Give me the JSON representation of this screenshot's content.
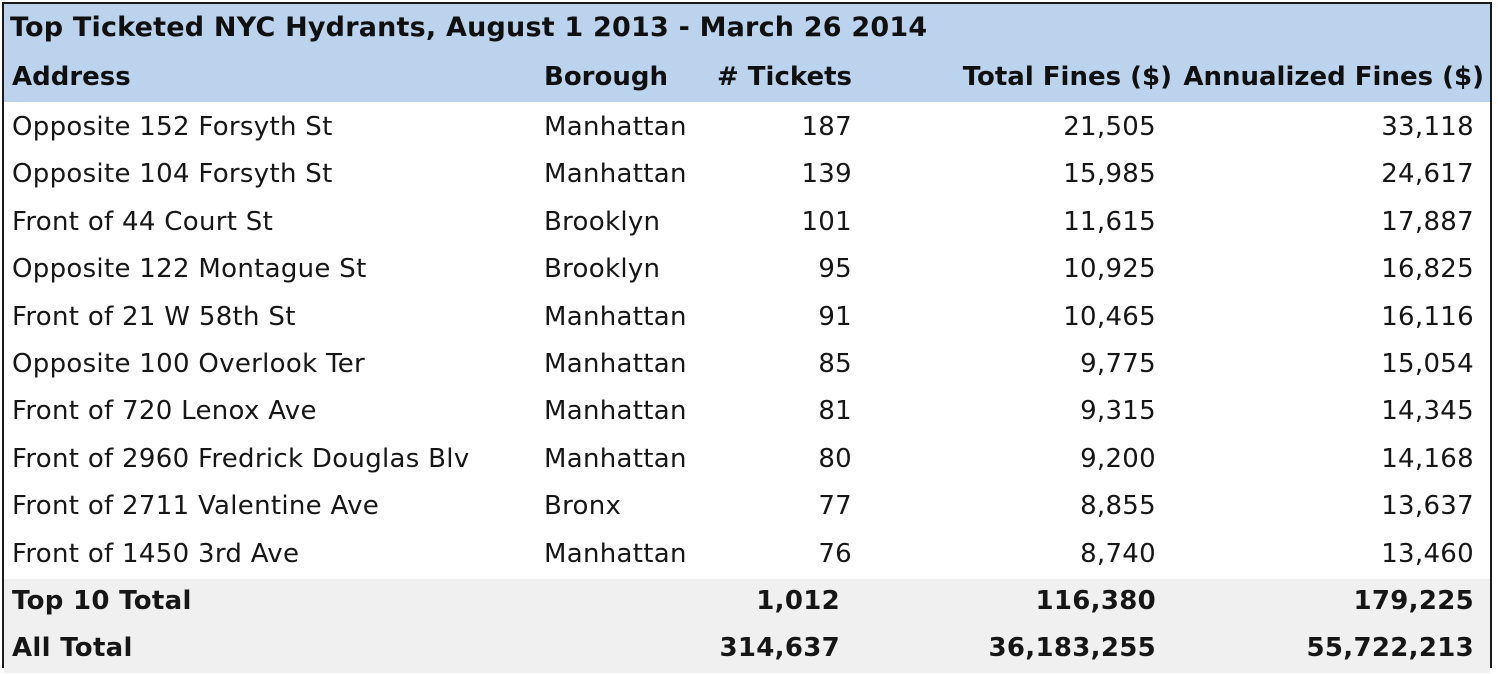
{
  "table": {
    "title": "Top Ticketed NYC Hydrants, August 1 2013 - March 26 2014",
    "headers": {
      "address": "Address",
      "borough": "Borough",
      "tickets": "# Tickets",
      "total_fines": "Total Fines ($)",
      "annualized_fines": "Annualized Fines ($)"
    },
    "rows": [
      {
        "address": "Opposite 152 Forsyth St",
        "borough": "Manhattan",
        "tickets": "187",
        "total_fines": "21,505",
        "annualized_fines": "33,118"
      },
      {
        "address": "Opposite 104 Forsyth St",
        "borough": "Manhattan",
        "tickets": "139",
        "total_fines": "15,985",
        "annualized_fines": "24,617"
      },
      {
        "address": "Front of 44 Court St",
        "borough": "Brooklyn",
        "tickets": "101",
        "total_fines": "11,615",
        "annualized_fines": "17,887"
      },
      {
        "address": "Opposite 122 Montague St",
        "borough": "Brooklyn",
        "tickets": "95",
        "total_fines": "10,925",
        "annualized_fines": "16,825"
      },
      {
        "address": "Front of 21 W 58th St",
        "borough": "Manhattan",
        "tickets": "91",
        "total_fines": "10,465",
        "annualized_fines": "16,116"
      },
      {
        "address": "Opposite 100 Overlook Ter",
        "borough": "Manhattan",
        "tickets": "85",
        "total_fines": "9,775",
        "annualized_fines": "15,054"
      },
      {
        "address": "Front of 720 Lenox Ave",
        "borough": "Manhattan",
        "tickets": "81",
        "total_fines": "9,315",
        "annualized_fines": "14,345"
      },
      {
        "address": "Front of 2960 Fredrick Douglas Blv",
        "borough": "Manhattan",
        "tickets": "80",
        "total_fines": "9,200",
        "annualized_fines": "14,168"
      },
      {
        "address": "Front of 2711 Valentine Ave",
        "borough": "Bronx",
        "tickets": "77",
        "total_fines": "8,855",
        "annualized_fines": "13,637"
      },
      {
        "address": "Front of 1450 3rd Ave",
        "borough": "Manhattan",
        "tickets": "76",
        "total_fines": "8,740",
        "annualized_fines": "13,460"
      }
    ],
    "totals": [
      {
        "label": "Top 10 Total",
        "tickets": "1,012",
        "total_fines": "116,380",
        "annualized_fines": "179,225"
      },
      {
        "label": "All Total",
        "tickets": "314,637",
        "total_fines": "36,183,255",
        "annualized_fines": "55,722,213"
      }
    ]
  },
  "colors": {
    "header_background": "#bcd3ed",
    "total_row_background": "#f0f0f0"
  },
  "chart_data": {
    "type": "table",
    "title": "Top Ticketed NYC Hydrants, August 1 2013 - March 26 2014",
    "columns": [
      "Address",
      "Borough",
      "# Tickets",
      "Total Fines ($)",
      "Annualized Fines ($)"
    ],
    "rows": [
      [
        "Opposite 152 Forsyth St",
        "Manhattan",
        187,
        21505,
        33118
      ],
      [
        "Opposite 104 Forsyth St",
        "Manhattan",
        139,
        15985,
        24617
      ],
      [
        "Front of 44 Court St",
        "Brooklyn",
        101,
        11615,
        17887
      ],
      [
        "Opposite 122 Montague St",
        "Brooklyn",
        95,
        10925,
        16825
      ],
      [
        "Front of 21 W 58th St",
        "Manhattan",
        91,
        10465,
        16116
      ],
      [
        "Opposite 100 Overlook Ter",
        "Manhattan",
        85,
        9775,
        15054
      ],
      [
        "Front of 720 Lenox Ave",
        "Manhattan",
        81,
        9315,
        14345
      ],
      [
        "Front of 2960 Fredrick Douglas Blv",
        "Manhattan",
        80,
        9200,
        14168
      ],
      [
        "Front of 2711 Valentine Ave",
        "Bronx",
        77,
        8855,
        13637
      ],
      [
        "Front of 1450 3rd Ave",
        "Manhattan",
        76,
        8740,
        13460
      ]
    ],
    "totals": [
      [
        "Top 10 Total",
        "",
        1012,
        116380,
        179225
      ],
      [
        "All Total",
        "",
        314637,
        36183255,
        55722213
      ]
    ]
  }
}
